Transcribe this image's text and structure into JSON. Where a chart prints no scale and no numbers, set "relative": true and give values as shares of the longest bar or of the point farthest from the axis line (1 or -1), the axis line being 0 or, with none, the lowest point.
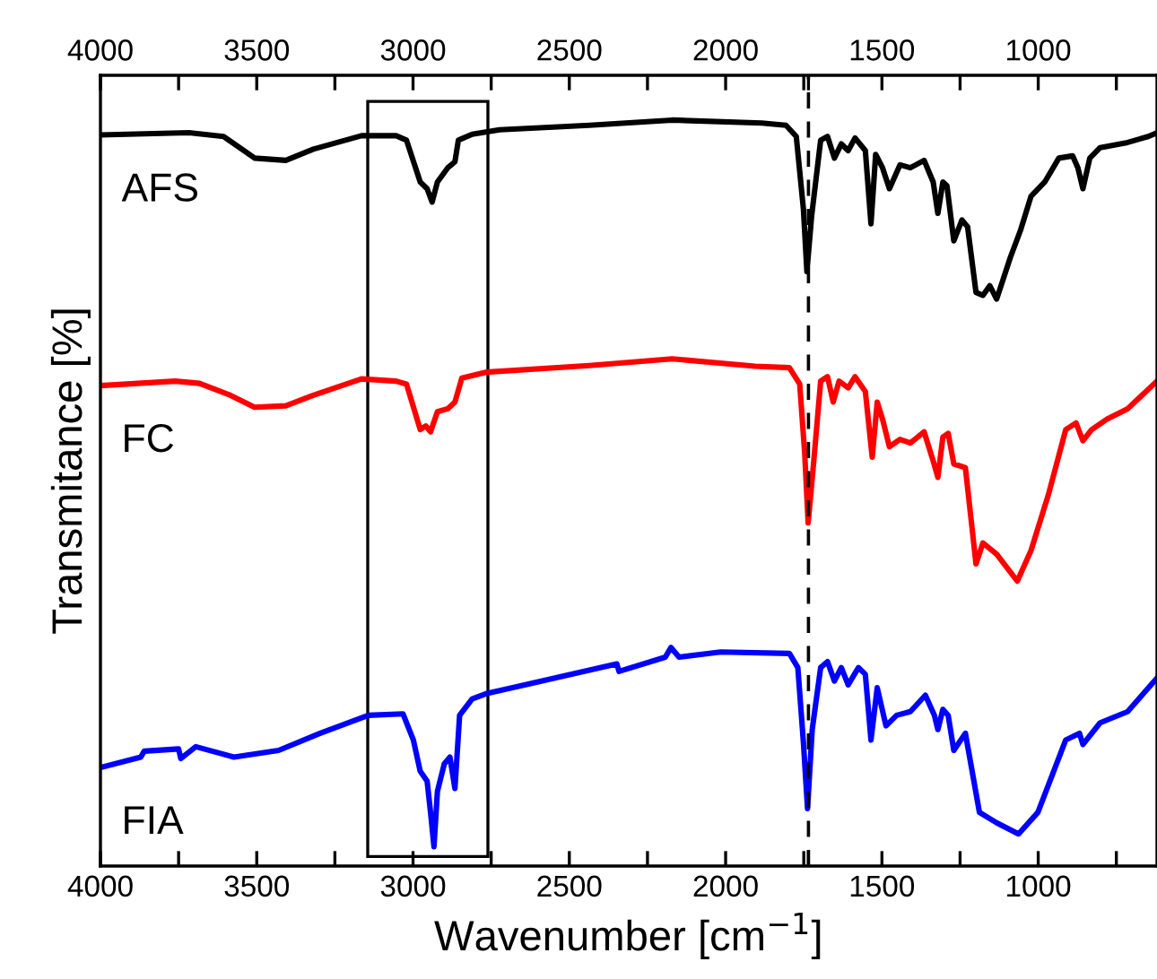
{
  "chart_data": {
    "type": "line",
    "relative": true,
    "xlabel": "Wavenumber [cm$^{−1}$]",
    "ylabel": "Transmitance [%]",
    "grid": false,
    "legend": false,
    "tick_labels": "x",
    "line_style": "solid",
    "marker": "none",
    "xlim": [
      4000,
      620
    ],
    "xticks": [
      4000,
      {
        "value": 3750,
        "label": null
      },
      3500,
      {
        "value": 3250,
        "label": null
      },
      3000,
      {
        "value": 2750,
        "label": null
      },
      2500,
      {
        "value": 2250,
        "label": null
      },
      2000,
      {
        "value": 1750,
        "label": null
      },
      {
        "value": 1735,
        "label": null
      },
      1500,
      {
        "value": 1250,
        "label": null
      },
      1000,
      {
        "value": 750,
        "label": null
      }
    ],
    "x2lim": [
      4000,
      620
    ],
    "x2ticks": [
      4000,
      {
        "value": 3750,
        "label": null
      },
      3500,
      {
        "value": 3250,
        "label": null
      },
      3000,
      {
        "value": 2750,
        "label": null
      },
      2500,
      {
        "value": 2250,
        "label": null
      },
      2000,
      {
        "value": 1750,
        "label": null
      },
      {
        "value": 1735,
        "label": null
      },
      1500,
      {
        "value": 1250,
        "label": null
      },
      1000,
      {
        "value": 750,
        "label": null
      }
    ],
    "ref_lines": [
      {
        "axis": "x",
        "value": 1735,
        "color": "#000000",
        "line_style": "dashed"
      }
    ],
    "series": [
      {
        "name": "AFS",
        "color": "#000000",
        "x": [
          4000,
          3717,
          3606,
          3507,
          3407,
          3319,
          3165,
          3054,
          3021,
          2977,
          2955,
          2939,
          2922,
          2889,
          2866,
          2855,
          2811,
          2723,
          2436,
          2171,
          1884,
          1807,
          1774,
          1751,
          1740,
          1725,
          1696,
          1674,
          1652,
          1630,
          1608,
          1586,
          1553,
          1535,
          1520,
          1498,
          1476,
          1442,
          1409,
          1365,
          1336,
          1321,
          1305,
          1292,
          1270,
          1244,
          1226,
          1199,
          1177,
          1155,
          1133,
          1089,
          1056,
          1023,
          979,
          934,
          890,
          873,
          857,
          835,
          802,
          714,
          648,
          620
        ],
        "values": [
          0.98,
          0.983,
          0.978,
          0.949,
          0.946,
          0.961,
          0.979,
          0.979,
          0.973,
          0.917,
          0.908,
          0.89,
          0.917,
          0.936,
          0.944,
          0.973,
          0.981,
          0.987,
          0.993,
          1.0,
          0.996,
          0.993,
          0.978,
          0.88,
          0.797,
          0.871,
          0.973,
          0.978,
          0.949,
          0.968,
          0.959,
          0.976,
          0.959,
          0.861,
          0.954,
          0.936,
          0.908,
          0.94,
          0.936,
          0.946,
          0.917,
          0.875,
          0.917,
          0.912,
          0.838,
          0.866,
          0.857,
          0.769,
          0.765,
          0.778,
          0.76,
          0.816,
          0.853,
          0.898,
          0.917,
          0.949,
          0.952,
          0.936,
          0.908,
          0.949,
          0.963,
          0.97,
          0.978,
          0.983
        ]
      },
      {
        "name": "FC",
        "color": "#ff0000",
        "x": [
          4000,
          3761,
          3683,
          3584,
          3507,
          3407,
          3319,
          3165,
          3054,
          3021,
          2977,
          2959,
          2944,
          2922,
          2889,
          2866,
          2844,
          2767,
          2436,
          2171,
          1906,
          1796,
          1763,
          1747,
          1736,
          1718,
          1696,
          1674,
          1656,
          1637,
          1608,
          1586,
          1553,
          1531,
          1515,
          1498,
          1476,
          1442,
          1409,
          1365,
          1336,
          1321,
          1305,
          1288,
          1270,
          1233,
          1199,
          1177,
          1133,
          1067,
          1023,
          968,
          912,
          879,
          857,
          829,
          780,
          714,
          620
        ],
        "values": [
          0.644,
          0.65,
          0.647,
          0.631,
          0.615,
          0.617,
          0.631,
          0.653,
          0.65,
          0.646,
          0.585,
          0.59,
          0.582,
          0.609,
          0.613,
          0.622,
          0.654,
          0.662,
          0.671,
          0.68,
          0.67,
          0.668,
          0.646,
          0.553,
          0.46,
          0.543,
          0.65,
          0.656,
          0.622,
          0.65,
          0.641,
          0.656,
          0.636,
          0.548,
          0.622,
          0.599,
          0.562,
          0.572,
          0.567,
          0.582,
          0.543,
          0.521,
          0.575,
          0.58,
          0.539,
          0.534,
          0.405,
          0.433,
          0.418,
          0.382,
          0.423,
          0.497,
          0.585,
          0.594,
          0.57,
          0.585,
          0.599,
          0.613,
          0.65
        ]
      },
      {
        "name": "FIA",
        "color": "#0000ff",
        "x": [
          4000,
          3871,
          3860,
          3750,
          3743,
          3695,
          3573,
          3430,
          3297,
          3143,
          3032,
          2999,
          2977,
          2955,
          2944,
          2933,
          2922,
          2900,
          2882,
          2866,
          2851,
          2811,
          2767,
          2546,
          2348,
          2341,
          2193,
          2175,
          2149,
          2016,
          1796,
          1769,
          1751,
          1738,
          1723,
          1696,
          1674,
          1652,
          1630,
          1608,
          1575,
          1553,
          1535,
          1515,
          1487,
          1453,
          1409,
          1361,
          1332,
          1321,
          1305,
          1288,
          1270,
          1233,
          1188,
          1133,
          1063,
          1001,
          912,
          868,
          857,
          802,
          714,
          620
        ],
        "values": [
          0.132,
          0.146,
          0.154,
          0.157,
          0.144,
          0.16,
          0.146,
          0.155,
          0.178,
          0.202,
          0.204,
          0.169,
          0.127,
          0.114,
          0.072,
          0.026,
          0.1,
          0.137,
          0.146,
          0.104,
          0.202,
          0.224,
          0.231,
          0.252,
          0.271,
          0.261,
          0.28,
          0.293,
          0.28,
          0.287,
          0.285,
          0.266,
          0.165,
          0.077,
          0.183,
          0.266,
          0.274,
          0.248,
          0.266,
          0.243,
          0.266,
          0.257,
          0.169,
          0.239,
          0.188,
          0.202,
          0.207,
          0.229,
          0.202,
          0.183,
          0.21,
          0.202,
          0.155,
          0.178,
          0.072,
          0.058,
          0.043,
          0.072,
          0.169,
          0.178,
          0.163,
          0.192,
          0.207,
          0.252
        ]
      }
    ]
  }
}
